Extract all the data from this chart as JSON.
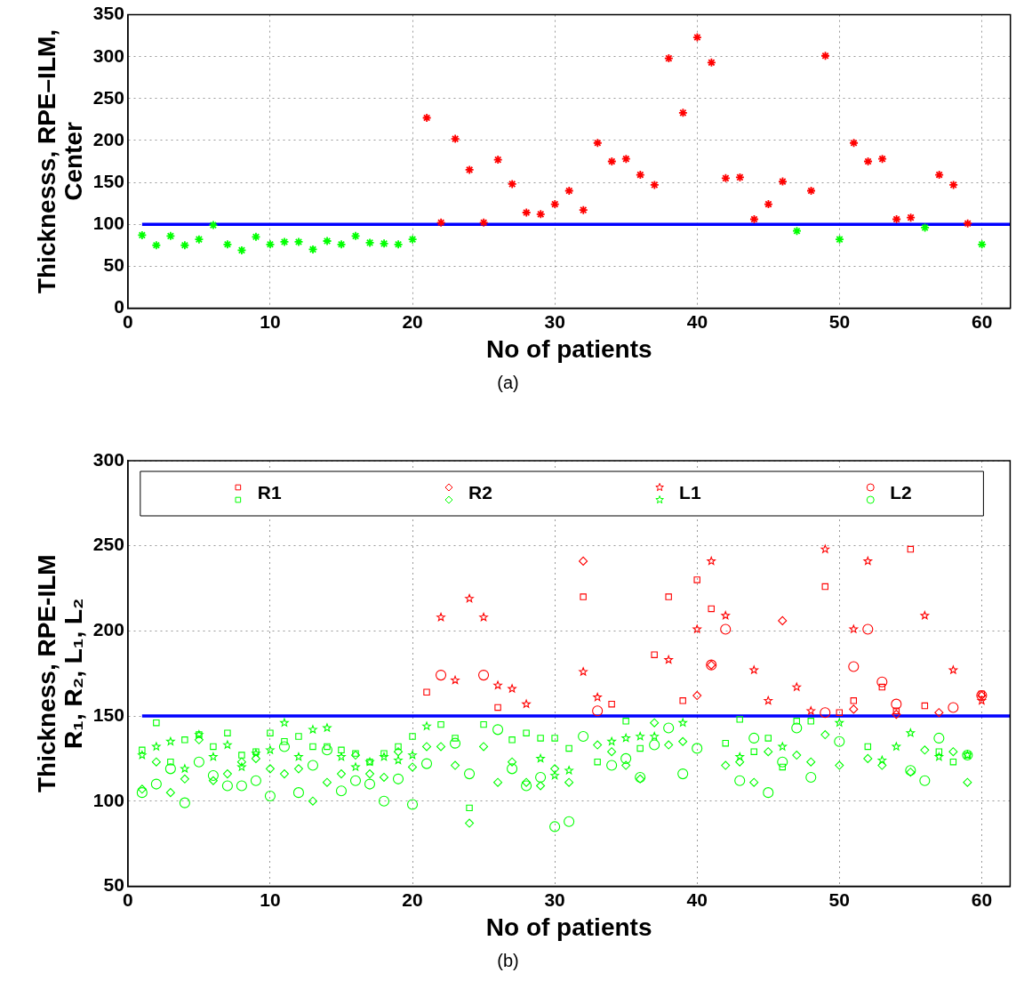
{
  "chart_data": [
    {
      "type": "scatter",
      "xlabel": "No of patients",
      "ylabel": "Thicknesss, RPE–ILM,\nCenter",
      "x": [
        1,
        2,
        3,
        4,
        5,
        6,
        7,
        8,
        9,
        10,
        11,
        12,
        13,
        14,
        15,
        16,
        17,
        18,
        19,
        20,
        21,
        22,
        23,
        24,
        25,
        26,
        27,
        28,
        29,
        30,
        31,
        32,
        33,
        34,
        35,
        36,
        37,
        38,
        39,
        40,
        41,
        42,
        43,
        44,
        45,
        46,
        47,
        48,
        49,
        50,
        51,
        52,
        53,
        54,
        55,
        56,
        57,
        58,
        59,
        60
      ],
      "values": [
        87,
        75,
        86,
        75,
        82,
        99,
        76,
        69,
        85,
        76,
        79,
        79,
        70,
        80,
        76,
        86,
        78,
        77,
        76,
        82,
        227,
        102,
        202,
        165,
        102,
        177,
        148,
        114,
        112,
        124,
        140,
        117,
        197,
        175,
        178,
        159,
        147,
        298,
        233,
        323,
        293,
        155,
        156,
        106,
        124,
        151,
        92,
        140,
        301,
        82,
        197,
        175,
        178,
        106,
        108,
        96,
        159,
        147,
        101,
        76
      ],
      "colors": [
        "#00ff00",
        "#00ff00",
        "#00ff00",
        "#00ff00",
        "#00ff00",
        "#00ff00",
        "#00ff00",
        "#00ff00",
        "#00ff00",
        "#00ff00",
        "#00ff00",
        "#00ff00",
        "#00ff00",
        "#00ff00",
        "#00ff00",
        "#00ff00",
        "#00ff00",
        "#00ff00",
        "#00ff00",
        "#00ff00",
        "#ff0000",
        "#ff0000",
        "#ff0000",
        "#ff0000",
        "#ff0000",
        "#ff0000",
        "#ff0000",
        "#ff0000",
        "#ff0000",
        "#ff0000",
        "#ff0000",
        "#ff0000",
        "#ff0000",
        "#ff0000",
        "#ff0000",
        "#ff0000",
        "#ff0000",
        "#ff0000",
        "#ff0000",
        "#ff0000",
        "#ff0000",
        "#ff0000",
        "#ff0000",
        "#ff0000",
        "#ff0000",
        "#ff0000",
        "#00ff00",
        "#ff0000",
        "#ff0000",
        "#00ff00",
        "#ff0000",
        "#ff0000",
        "#ff0000",
        "#ff0000",
        "#ff0000",
        "#00ff00",
        "#ff0000",
        "#ff0000",
        "#ff0000",
        "#00ff00"
      ],
      "marker": "cross",
      "xlim": [
        0,
        62
      ],
      "xticks": [
        0,
        10,
        20,
        30,
        40,
        50,
        60
      ],
      "ylim": [
        0,
        350
      ],
      "yticks": [
        0,
        50,
        100,
        150,
        200,
        250,
        300,
        350
      ],
      "grid": true,
      "ref_lines": [
        {
          "axis": "y",
          "value": 100,
          "color": "#0000ff"
        }
      ],
      "annotations": [
        "(a)"
      ]
    },
    {
      "type": "scatter",
      "xlabel": "No of patients",
      "ylabel": "Thickness, RPE-ILM\nR₁, R₂, L₁, L₂",
      "x": [
        1,
        2,
        3,
        4,
        5,
        6,
        7,
        8,
        9,
        10,
        11,
        12,
        13,
        14,
        15,
        16,
        17,
        18,
        19,
        20,
        21,
        22,
        23,
        24,
        25,
        26,
        27,
        28,
        29,
        30,
        31,
        32,
        33,
        34,
        35,
        36,
        37,
        38,
        39,
        40,
        41,
        42,
        43,
        44,
        45,
        46,
        47,
        48,
        49,
        50,
        51,
        52,
        53,
        54,
        55,
        56,
        57,
        58,
        59,
        60
      ],
      "series": [
        {
          "name": "R1",
          "marker": "square",
          "values": [
            130,
            146,
            123,
            136,
            139,
            132,
            140,
            127,
            129,
            140,
            135,
            138,
            132,
            132,
            130,
            128,
            123,
            128,
            132,
            138,
            164,
            145,
            137,
            96,
            145,
            155,
            136,
            140,
            137,
            137,
            131,
            220,
            123,
            157,
            147,
            131,
            186,
            220,
            159,
            230,
            213,
            134,
            148,
            129,
            137,
            120,
            147,
            147,
            226,
            152,
            159,
            132,
            167,
            153,
            248,
            156,
            129,
            123,
            127,
            163
          ],
          "colors": [
            "#00ff00",
            "#00ff00",
            "#00ff00",
            "#00ff00",
            "#00ff00",
            "#00ff00",
            "#00ff00",
            "#00ff00",
            "#00ff00",
            "#00ff00",
            "#00ff00",
            "#00ff00",
            "#00ff00",
            "#00ff00",
            "#00ff00",
            "#00ff00",
            "#00ff00",
            "#00ff00",
            "#00ff00",
            "#00ff00",
            "#ff0000",
            "#00ff00",
            "#00ff00",
            "#00ff00",
            "#00ff00",
            "#ff0000",
            "#00ff00",
            "#00ff00",
            "#00ff00",
            "#00ff00",
            "#00ff00",
            "#ff0000",
            "#00ff00",
            "#ff0000",
            "#00ff00",
            "#00ff00",
            "#ff0000",
            "#ff0000",
            "#ff0000",
            "#ff0000",
            "#ff0000",
            "#00ff00",
            "#00ff00",
            "#00ff00",
            "#00ff00",
            "#00ff00",
            "#00ff00",
            "#00ff00",
            "#ff0000",
            "#ff0000",
            "#ff0000",
            "#00ff00",
            "#ff0000",
            "#ff0000",
            "#ff0000",
            "#ff0000",
            "#00ff00",
            "#00ff00",
            "#00ff00",
            "#ff0000"
          ]
        },
        {
          "name": "R2",
          "marker": "diamond",
          "values": [
            107,
            123,
            105,
            113,
            136,
            112,
            116,
            123,
            125,
            119,
            116,
            119,
            100,
            111,
            116,
            127,
            116,
            114,
            129,
            120,
            132,
            132,
            121,
            87,
            132,
            111,
            123,
            111,
            109,
            119,
            111,
            241,
            133,
            129,
            121,
            113,
            146,
            133,
            135,
            162,
            180,
            121,
            123,
            111,
            129,
            206,
            127,
            123,
            139,
            121,
            154,
            125,
            121,
            151,
            117,
            130,
            152,
            129,
            111,
            162
          ],
          "colors": [
            "#00ff00",
            "#00ff00",
            "#00ff00",
            "#00ff00",
            "#00ff00",
            "#00ff00",
            "#00ff00",
            "#00ff00",
            "#00ff00",
            "#00ff00",
            "#00ff00",
            "#00ff00",
            "#00ff00",
            "#00ff00",
            "#00ff00",
            "#00ff00",
            "#00ff00",
            "#00ff00",
            "#00ff00",
            "#00ff00",
            "#00ff00",
            "#00ff00",
            "#00ff00",
            "#00ff00",
            "#00ff00",
            "#00ff00",
            "#00ff00",
            "#00ff00",
            "#00ff00",
            "#00ff00",
            "#00ff00",
            "#ff0000",
            "#00ff00",
            "#00ff00",
            "#00ff00",
            "#00ff00",
            "#00ff00",
            "#00ff00",
            "#00ff00",
            "#ff0000",
            "#ff0000",
            "#00ff00",
            "#00ff00",
            "#00ff00",
            "#00ff00",
            "#ff0000",
            "#00ff00",
            "#00ff00",
            "#00ff00",
            "#00ff00",
            "#ff0000",
            "#00ff00",
            "#00ff00",
            "#ff0000",
            "#00ff00",
            "#00ff00",
            "#ff0000",
            "#00ff00",
            "#00ff00",
            "#ff0000"
          ]
        },
        {
          "name": "L1",
          "marker": "star",
          "values": [
            127,
            132,
            135,
            119,
            139,
            126,
            133,
            120,
            128,
            130,
            146,
            126,
            142,
            143,
            126,
            120,
            123,
            126,
            124,
            127,
            144,
            208,
            171,
            219,
            208,
            168,
            166,
            157,
            125,
            115,
            118,
            176,
            161,
            135,
            137,
            138,
            138,
            183,
            146,
            201,
            241,
            209,
            126,
            177,
            159,
            132,
            167,
            153,
            248,
            146,
            201,
            241,
            124,
            132,
            140,
            209,
            126,
            177,
            127,
            159
          ],
          "colors": [
            "#00ff00",
            "#00ff00",
            "#00ff00",
            "#00ff00",
            "#00ff00",
            "#00ff00",
            "#00ff00",
            "#00ff00",
            "#00ff00",
            "#00ff00",
            "#00ff00",
            "#00ff00",
            "#00ff00",
            "#00ff00",
            "#00ff00",
            "#00ff00",
            "#00ff00",
            "#00ff00",
            "#00ff00",
            "#00ff00",
            "#00ff00",
            "#ff0000",
            "#ff0000",
            "#ff0000",
            "#ff0000",
            "#ff0000",
            "#ff0000",
            "#ff0000",
            "#00ff00",
            "#00ff00",
            "#00ff00",
            "#ff0000",
            "#ff0000",
            "#00ff00",
            "#00ff00",
            "#00ff00",
            "#00ff00",
            "#ff0000",
            "#00ff00",
            "#ff0000",
            "#ff0000",
            "#ff0000",
            "#00ff00",
            "#ff0000",
            "#ff0000",
            "#00ff00",
            "#ff0000",
            "#ff0000",
            "#ff0000",
            "#00ff00",
            "#ff0000",
            "#ff0000",
            "#00ff00",
            "#00ff00",
            "#00ff00",
            "#ff0000",
            "#00ff00",
            "#ff0000",
            "#00ff00",
            "#ff0000"
          ]
        },
        {
          "name": "L2",
          "marker": "circle",
          "values": [
            105,
            110,
            119,
            99,
            123,
            115,
            109,
            109,
            112,
            103,
            132,
            105,
            121,
            130,
            106,
            112,
            110,
            100,
            113,
            98,
            122,
            174,
            134,
            116,
            174,
            142,
            119,
            109,
            114,
            85,
            88,
            138,
            153,
            121,
            125,
            114,
            133,
            143,
            116,
            131,
            180,
            201,
            112,
            137,
            105,
            123,
            143,
            114,
            152,
            135,
            179,
            201,
            170,
            157,
            118,
            112,
            137,
            155,
            127,
            162
          ],
          "colors": [
            "#00ff00",
            "#00ff00",
            "#00ff00",
            "#00ff00",
            "#00ff00",
            "#00ff00",
            "#00ff00",
            "#00ff00",
            "#00ff00",
            "#00ff00",
            "#00ff00",
            "#00ff00",
            "#00ff00",
            "#00ff00",
            "#00ff00",
            "#00ff00",
            "#00ff00",
            "#00ff00",
            "#00ff00",
            "#00ff00",
            "#00ff00",
            "#ff0000",
            "#00ff00",
            "#00ff00",
            "#ff0000",
            "#00ff00",
            "#00ff00",
            "#00ff00",
            "#00ff00",
            "#00ff00",
            "#00ff00",
            "#00ff00",
            "#ff0000",
            "#00ff00",
            "#00ff00",
            "#00ff00",
            "#00ff00",
            "#00ff00",
            "#00ff00",
            "#00ff00",
            "#ff0000",
            "#ff0000",
            "#00ff00",
            "#00ff00",
            "#00ff00",
            "#00ff00",
            "#00ff00",
            "#00ff00",
            "#ff0000",
            "#00ff00",
            "#ff0000",
            "#ff0000",
            "#ff0000",
            "#ff0000",
            "#00ff00",
            "#00ff00",
            "#00ff00",
            "#ff0000",
            "#00ff00",
            "#ff0000"
          ]
        }
      ],
      "xlim": [
        0,
        62
      ],
      "xticks": [
        0,
        10,
        20,
        30,
        40,
        50,
        60
      ],
      "ylim": [
        50,
        300
      ],
      "yticks": [
        50,
        100,
        150,
        200,
        250,
        300
      ],
      "grid": true,
      "legend": "top",
      "ref_lines": [
        {
          "axis": "y",
          "value": 150,
          "color": "#0000ff"
        }
      ],
      "annotations": [
        "(b)"
      ]
    }
  ]
}
